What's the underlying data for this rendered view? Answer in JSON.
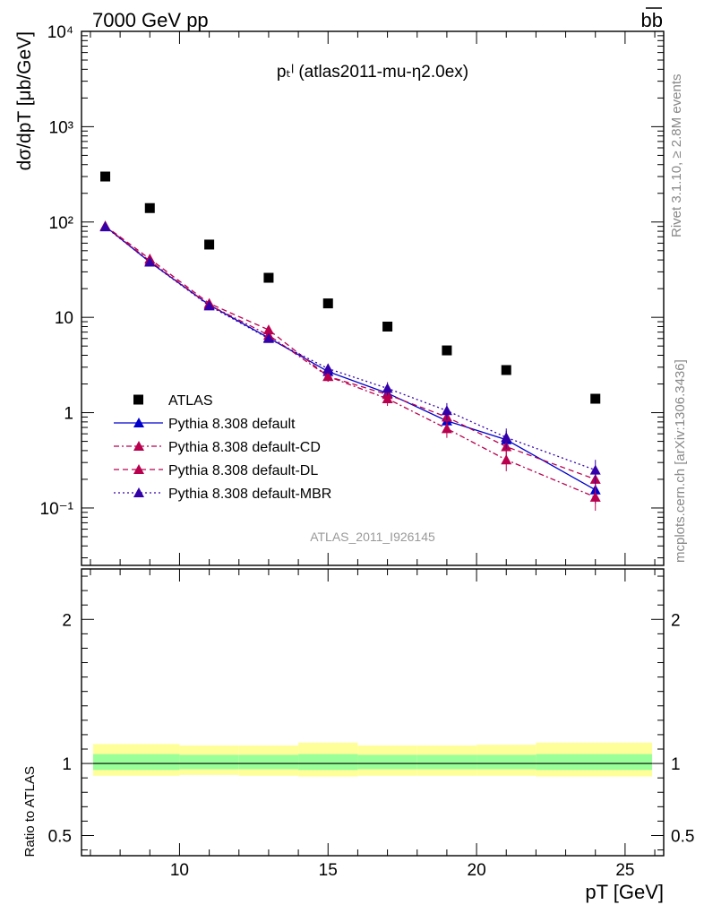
{
  "header": {
    "energy": "7000 GeV pp",
    "process": "bb",
    "rivet_label": "Rivet 3.1.10, ≥ 2.8M events",
    "mcplots_label": "mcplots.cern.ch [arXiv:1306.3436]",
    "analysis_id": "ATLAS_2011_I926145"
  },
  "chart_data": {
    "type": "scatter",
    "title": "pₜˡ (atlas2011-mu-η2.0ex)",
    "xlabel": "pT [GeV]",
    "ylabel": "dσ/dpT [μb/GeV]",
    "ratio_ylabel": "Ratio to ATLAS",
    "xlim": [
      6.7,
      26.3
    ],
    "ylim": [
      0.025,
      10000
    ],
    "y_scale": "log",
    "ratio_ylim": [
      0.36,
      2.35
    ],
    "x_ticks": [
      "10",
      "15",
      "20",
      "25"
    ],
    "y_ticks": [
      "10⁻¹",
      "1",
      "10",
      "10²",
      "10³",
      "10⁴"
    ],
    "ratio_ticks": [
      "0.5",
      "1",
      "2"
    ],
    "legend_position": "center-left",
    "series": [
      {
        "name": "ATLAS",
        "color": "#000000",
        "marker": "square",
        "x": [
          7.5,
          9,
          11,
          13,
          15,
          17,
          19,
          21,
          24
        ],
        "y": [
          300,
          140,
          58,
          26,
          14,
          8,
          4.5,
          2.8,
          1.4
        ]
      },
      {
        "name": "Pythia 8.308 default",
        "color": "#0000cc",
        "marker": "triangle",
        "line": "solid",
        "x": [
          7.5,
          9,
          11,
          13,
          15,
          17,
          19,
          21,
          24
        ],
        "y": [
          90,
          38,
          13.5,
          6.1,
          2.7,
          1.6,
          0.82,
          0.52,
          0.155
        ]
      },
      {
        "name": "Pythia 8.308 default-CD",
        "color": "#b8004e",
        "marker": "triangle",
        "line": "dashdot",
        "x": [
          7.5,
          9,
          11,
          13,
          15,
          17,
          19,
          21,
          24
        ],
        "y": [
          90,
          39,
          13.5,
          6.5,
          2.4,
          1.4,
          0.68,
          0.32,
          0.13
        ]
      },
      {
        "name": "Pythia 8.308 default-DL",
        "color": "#b8004e",
        "marker": "triangle",
        "line": "dashed",
        "x": [
          7.5,
          9,
          11,
          13,
          15,
          17,
          19,
          21,
          24
        ],
        "y": [
          91,
          41,
          14,
          7.4,
          2.4,
          1.55,
          0.9,
          0.44,
          0.2
        ]
      },
      {
        "name": "Pythia 8.308 default-MBR",
        "color": "#3300aa",
        "marker": "triangle",
        "line": "dotted",
        "x": [
          7.5,
          9,
          11,
          13,
          15,
          17,
          19,
          21,
          24
        ],
        "y": [
          89,
          38,
          13.2,
          6.0,
          2.9,
          1.8,
          1.05,
          0.55,
          0.25
        ]
      }
    ],
    "ratio_band": {
      "x_edges": [
        7,
        10,
        12,
        14,
        16,
        18,
        20,
        22,
        26
      ],
      "inner_low": [
        0.955,
        0.96,
        0.96,
        0.955,
        0.96,
        0.96,
        0.96,
        0.955
      ],
      "inner_high": [
        1.065,
        1.06,
        1.06,
        1.065,
        1.06,
        1.06,
        1.06,
        1.065
      ],
      "outer_low": [
        0.915,
        0.92,
        0.915,
        0.91,
        0.915,
        0.915,
        0.915,
        0.91
      ],
      "outer_high": [
        1.135,
        1.125,
        1.125,
        1.145,
        1.125,
        1.125,
        1.13,
        1.145
      ]
    }
  }
}
